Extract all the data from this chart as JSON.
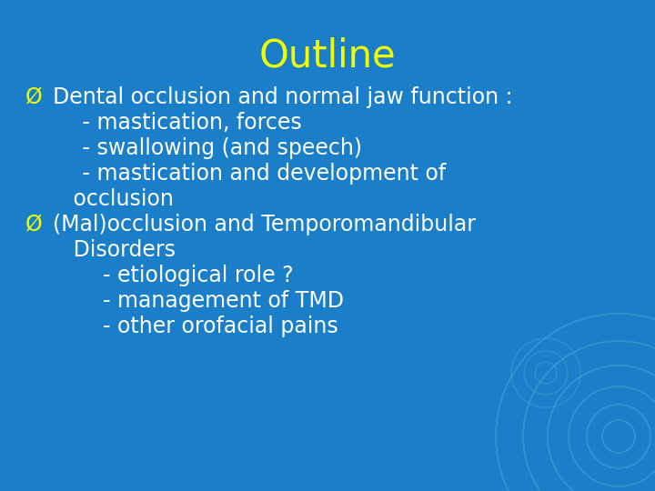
{
  "title": "Outline",
  "title_color": "#EEFF00",
  "title_fontsize": 30,
  "background_color": "#1A7EC8",
  "text_color": "#FFFFFF",
  "bullet_color": "#EEFF00",
  "bullet_sym": "Ø",
  "lines": [
    {
      "type": "bullet",
      "text": "Dental occlusion and normal jaw function :"
    },
    {
      "type": "sub",
      "text": "   - mastication, forces"
    },
    {
      "type": "sub",
      "text": "   - swallowing (and speech)"
    },
    {
      "type": "sub",
      "text": "   - mastication and development of"
    },
    {
      "type": "sub2",
      "text": "   occlusion"
    },
    {
      "type": "bullet",
      "text": "(Mal)occlusion and Temporomandibular"
    },
    {
      "type": "sub2",
      "text": "   Disorders"
    },
    {
      "type": "sub",
      "text": "      - etiological role ?"
    },
    {
      "type": "sub",
      "text": "      - management of TMD"
    },
    {
      "type": "sub",
      "text": "      - other orofacial pains"
    }
  ],
  "body_fontsize": 17,
  "circle_color": "#4BAAD4",
  "figwidth": 7.2,
  "figheight": 5.4,
  "dpi": 100
}
